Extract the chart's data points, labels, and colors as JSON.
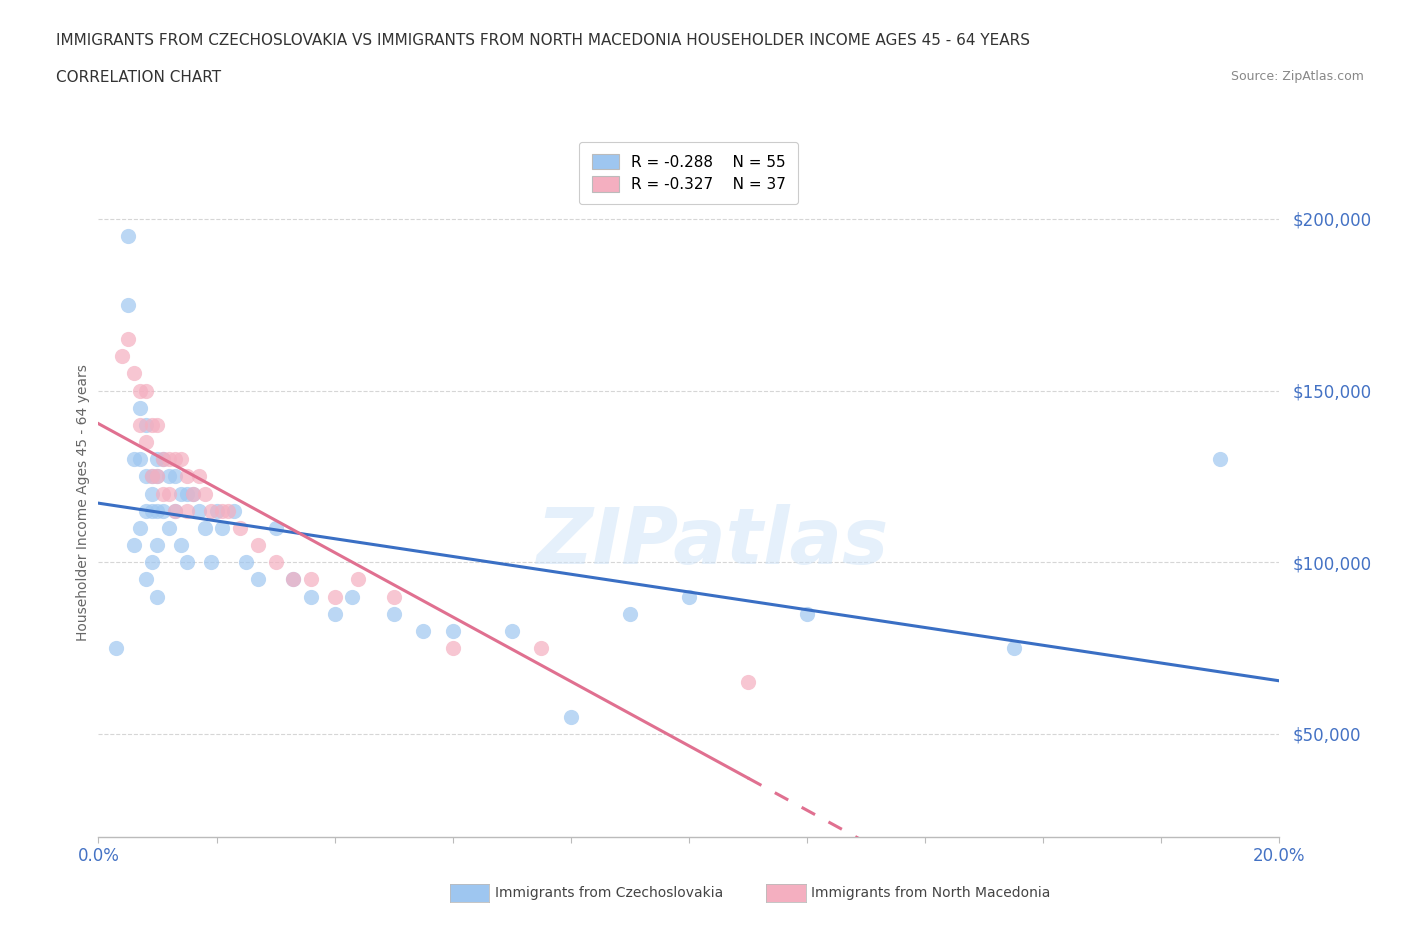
{
  "title_line1": "IMMIGRANTS FROM CZECHOSLOVAKIA VS IMMIGRANTS FROM NORTH MACEDONIA HOUSEHOLDER INCOME AGES 45 - 64 YEARS",
  "title_line2": "CORRELATION CHART",
  "source_text": "Source: ZipAtlas.com",
  "ylabel": "Householder Income Ages 45 - 64 years",
  "xlim": [
    0.0,
    0.2
  ],
  "ylim": [
    20000,
    215000
  ],
  "yticks": [
    50000,
    100000,
    150000,
    200000
  ],
  "xticks": [
    0.0,
    0.02,
    0.04,
    0.06,
    0.08,
    0.1,
    0.12,
    0.14,
    0.16,
    0.18,
    0.2
  ],
  "watermark": "ZIPatlas",
  "legend_R1": "R = -0.288",
  "legend_N1": "N = 55",
  "legend_R2": "R = -0.327",
  "legend_N2": "N = 37",
  "color_czech": "#9ec6f0",
  "color_macedonia": "#f4afc0",
  "color_title": "#555555",
  "color_ytick": "#4472c4",
  "color_xtick": "#4472c4",
  "color_axis": "#bbbbbb",
  "color_grid": "#cccccc",
  "line_color_czech": "#3a6fc4",
  "line_color_macedonia": "#e07090",
  "background_color": "#ffffff",
  "czech_x": [
    0.003,
    0.005,
    0.005,
    0.006,
    0.006,
    0.007,
    0.007,
    0.007,
    0.008,
    0.008,
    0.008,
    0.008,
    0.009,
    0.009,
    0.009,
    0.009,
    0.01,
    0.01,
    0.01,
    0.01,
    0.01,
    0.011,
    0.011,
    0.012,
    0.012,
    0.013,
    0.013,
    0.014,
    0.014,
    0.015,
    0.015,
    0.016,
    0.017,
    0.018,
    0.019,
    0.02,
    0.021,
    0.023,
    0.025,
    0.027,
    0.03,
    0.033,
    0.036,
    0.04,
    0.043,
    0.05,
    0.055,
    0.06,
    0.07,
    0.08,
    0.09,
    0.1,
    0.12,
    0.155,
    0.19
  ],
  "czech_y": [
    75000,
    195000,
    175000,
    130000,
    105000,
    145000,
    130000,
    110000,
    140000,
    125000,
    115000,
    95000,
    125000,
    120000,
    115000,
    100000,
    130000,
    125000,
    115000,
    105000,
    90000,
    130000,
    115000,
    125000,
    110000,
    125000,
    115000,
    120000,
    105000,
    120000,
    100000,
    120000,
    115000,
    110000,
    100000,
    115000,
    110000,
    115000,
    100000,
    95000,
    110000,
    95000,
    90000,
    85000,
    90000,
    85000,
    80000,
    80000,
    80000,
    55000,
    85000,
    90000,
    85000,
    75000,
    130000
  ],
  "mac_x": [
    0.004,
    0.005,
    0.006,
    0.007,
    0.007,
    0.008,
    0.008,
    0.009,
    0.009,
    0.01,
    0.01,
    0.011,
    0.011,
    0.012,
    0.012,
    0.013,
    0.013,
    0.014,
    0.015,
    0.015,
    0.016,
    0.017,
    0.018,
    0.019,
    0.021,
    0.022,
    0.024,
    0.027,
    0.03,
    0.033,
    0.036,
    0.04,
    0.044,
    0.05,
    0.06,
    0.075,
    0.11
  ],
  "mac_y": [
    160000,
    165000,
    155000,
    150000,
    140000,
    150000,
    135000,
    140000,
    125000,
    140000,
    125000,
    130000,
    120000,
    130000,
    120000,
    130000,
    115000,
    130000,
    125000,
    115000,
    120000,
    125000,
    120000,
    115000,
    115000,
    115000,
    110000,
    105000,
    100000,
    95000,
    95000,
    90000,
    95000,
    90000,
    75000,
    75000,
    65000
  ]
}
